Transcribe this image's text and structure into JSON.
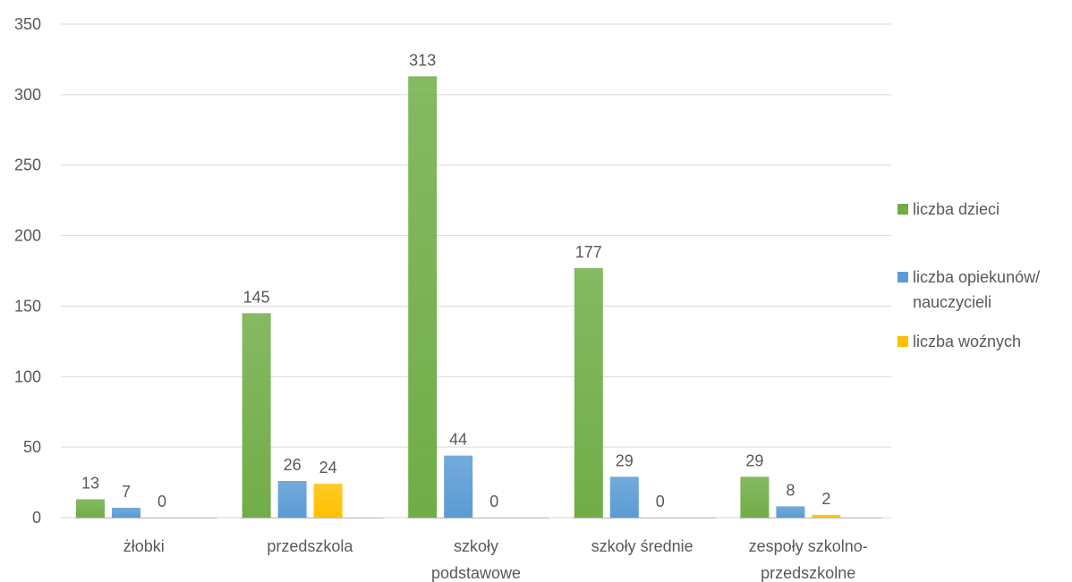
{
  "chart_data": {
    "type": "bar",
    "title": "",
    "xlabel": "",
    "ylabel": "",
    "ylim": [
      0,
      350
    ],
    "yticks": [
      0,
      50,
      100,
      150,
      200,
      250,
      300,
      350
    ],
    "grid": true,
    "legend_position": "right",
    "categories": [
      [
        "żłobki"
      ],
      [
        "przedszkola"
      ],
      [
        "szkoły",
        "podstawowe"
      ],
      [
        "szkoły średnie"
      ],
      [
        "zespoły szkolno-",
        "przedszkolne"
      ]
    ],
    "series": [
      {
        "name_lines": [
          "liczba dzieci"
        ],
        "color": "#70ad47",
        "values": [
          13,
          145,
          313,
          177,
          29
        ]
      },
      {
        "name_lines": [
          "liczba opiekunów/",
          "nauczycieli"
        ],
        "color": "#5b9bd5",
        "values": [
          7,
          26,
          44,
          29,
          8
        ]
      },
      {
        "name_lines": [
          "liczba woźnych"
        ],
        "color": "#ffc000",
        "values": [
          0,
          24,
          0,
          0,
          2
        ]
      }
    ]
  }
}
